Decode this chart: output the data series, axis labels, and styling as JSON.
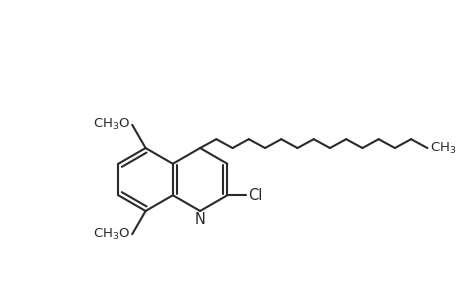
{
  "background_color": "#ffffff",
  "line_color": "#2a2a2a",
  "line_width": 1.5,
  "font_size": 9.5,
  "figsize": [
    4.6,
    3.0
  ],
  "dpi": 100,
  "n_chain_carbons": 14,
  "ch3_label": "CH$_3$",
  "och3_label": "OCH$_3$",
  "ch3o_label": "CH$_3$O",
  "cl_label": "Cl",
  "n_label": "N"
}
